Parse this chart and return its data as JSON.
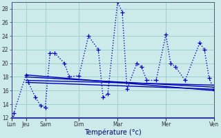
{
  "xlabel": "Température (°c)",
  "background_color": "#cceaea",
  "grid_color": "#99cccc",
  "line_color": "#0000bb",
  "ylim": [
    12,
    29
  ],
  "yticks": [
    12,
    14,
    16,
    18,
    20,
    22,
    24,
    26,
    28
  ],
  "day_labels": [
    "Lun",
    "Jeu",
    "Sam",
    "Dim",
    "Mar",
    "Mer",
    "Ven"
  ],
  "day_positions": [
    0.0,
    0.43,
    1.0,
    2.0,
    3.14,
    4.57,
    6.0
  ],
  "xlim": [
    0,
    6.0
  ],
  "lines": [
    {
      "x": [
        0.0,
        0.07,
        0.43,
        0.5,
        0.71,
        0.86,
        1.0,
        1.14,
        1.28,
        1.57,
        1.71,
        2.0,
        2.28,
        2.57,
        2.71,
        2.85,
        3.14,
        3.28,
        3.42,
        3.71,
        3.85,
        4.0,
        4.28,
        4.57,
        4.71,
        4.85,
        5.14,
        5.57,
        5.71,
        5.85,
        6.0
      ],
      "y": [
        12.3,
        12.7,
        18.3,
        17.2,
        15.0,
        13.8,
        13.5,
        21.5,
        21.5,
        20.0,
        18.0,
        18.2,
        24.0,
        22.0,
        15.0,
        15.5,
        29.0,
        27.5,
        16.2,
        20.0,
        19.5,
        17.5,
        17.5,
        24.2,
        20.0,
        19.5,
        17.5,
        23.0,
        22.0,
        17.8,
        16.1
      ],
      "marker": "+",
      "lw": 1.0,
      "ms": 4.0,
      "dotted": true
    },
    {
      "x": [
        0.43,
        6.0
      ],
      "y": [
        18.3,
        16.0
      ],
      "marker": "+",
      "lw": 1.0,
      "ms": 3.0,
      "dotted": false
    },
    {
      "x": [
        0.43,
        6.0
      ],
      "y": [
        18.0,
        16.5
      ],
      "marker": null,
      "lw": 1.0,
      "ms": 0,
      "dotted": false
    },
    {
      "x": [
        0.43,
        6.0
      ],
      "y": [
        17.5,
        16.8
      ],
      "marker": null,
      "lw": 1.0,
      "ms": 0,
      "dotted": false
    },
    {
      "x": [
        0.43,
        6.0
      ],
      "y": [
        17.2,
        16.2
      ],
      "marker": null,
      "lw": 1.0,
      "ms": 0,
      "dotted": false
    }
  ]
}
